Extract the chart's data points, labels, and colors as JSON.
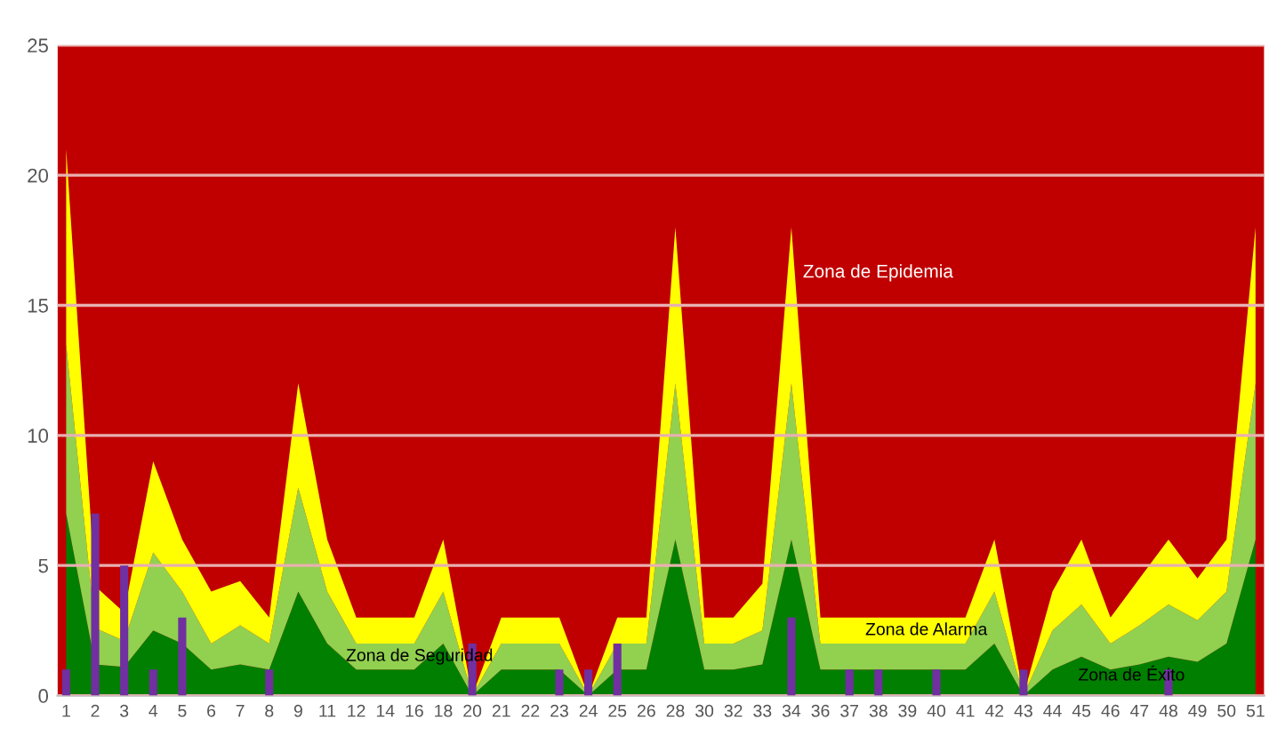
{
  "chart_data": {
    "type": "area",
    "stacked": true,
    "categories": [
      "1",
      "2",
      "3",
      "4",
      "5",
      "6",
      "7",
      "8",
      "9",
      "11",
      "12",
      "14",
      "16",
      "18",
      "20",
      "21",
      "22",
      "23",
      "24",
      "25",
      "26",
      "28",
      "30",
      "32",
      "33",
      "34",
      "36",
      "37",
      "38",
      "39",
      "40",
      "41",
      "42",
      "43",
      "44",
      "45",
      "46",
      "47",
      "48",
      "49",
      "50",
      "51"
    ],
    "series": [
      {
        "color": "#007f00",
        "values": [
          7,
          1.2,
          1.1,
          2.5,
          2,
          1,
          1.2,
          1,
          4,
          2,
          1,
          1,
          1,
          2,
          0,
          1,
          1,
          1,
          0,
          1,
          1,
          6,
          1,
          1,
          1.2,
          6,
          1,
          1,
          1,
          1,
          1,
          1,
          2,
          0,
          1,
          1.5,
          1,
          1.2,
          1.5,
          1.3,
          2,
          6
        ]
      },
      {
        "color": "#92d050",
        "values": [
          6.5,
          1.4,
          1,
          3,
          2,
          1,
          1.5,
          1,
          4,
          2,
          1,
          1,
          1,
          2,
          0,
          1,
          1,
          1,
          0,
          1,
          1,
          6,
          1,
          1,
          1.3,
          6,
          1,
          1,
          1,
          1,
          1,
          1,
          2,
          0,
          1.5,
          2,
          1,
          1.5,
          2,
          1.6,
          2,
          6
        ]
      },
      {
        "color": "#ffff00",
        "values": [
          7.5,
          1.6,
          1.1,
          3.5,
          2,
          2,
          1.7,
          1,
          4,
          2,
          1,
          1,
          1,
          2,
          0,
          1,
          1,
          1,
          0,
          1,
          1,
          6,
          1,
          1,
          1.8,
          6,
          1,
          1,
          1,
          1,
          1,
          1,
          2,
          0,
          1.5,
          2.5,
          1,
          1.8,
          2.5,
          1.6,
          2,
          6
        ]
      },
      {
        "type": "bar",
        "color": "#7030a0",
        "values": [
          1,
          7,
          5,
          1,
          3,
          0,
          0,
          1,
          0,
          0,
          0,
          0,
          0,
          0,
          2,
          0,
          0,
          1,
          1,
          2,
          0,
          0,
          0,
          0,
          0,
          3,
          0,
          1,
          1,
          0,
          1,
          0,
          0,
          1,
          0,
          0,
          0,
          0,
          1,
          0,
          0,
          0
        ]
      }
    ],
    "bands": [
      {
        "axis": "y",
        "from": 0,
        "to": 25,
        "label": "Zona de Epidemia",
        "color": "#c00000"
      }
    ],
    "ylim": [
      0,
      25
    ],
    "yticks": [
      0,
      5,
      10,
      15,
      20,
      25
    ],
    "grid": "y",
    "annotations": [
      "Zona de Alarma",
      "Zona de Seguridad",
      "Zona de Éxito"
    ]
  }
}
